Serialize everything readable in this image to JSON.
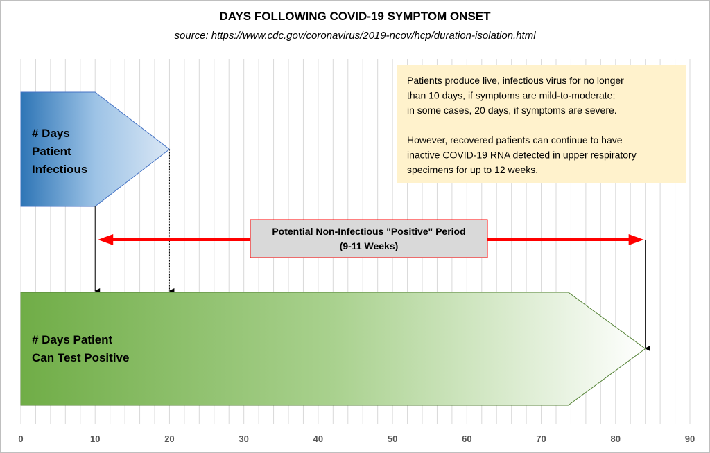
{
  "chart_data": {
    "type": "timeline",
    "title": "DAYS FOLLOWING COVID-19 SYMPTOM ONSET",
    "subtitle": "source: https://www.cdc.gov/coronavirus/2019-ncov/hcp/duration-isolation.html",
    "x_axis": {
      "range": [
        0,
        90
      ],
      "ticks": [
        "0",
        "10",
        "20",
        "30",
        "40",
        "50",
        "60",
        "70",
        "80",
        "90"
      ],
      "grid_step": 2
    },
    "infectious": {
      "label": [
        "# Days",
        "Patient",
        "Infectious"
      ],
      "start": 0,
      "typical_end": 10,
      "max_end": 20,
      "colors": [
        "#2e75b6",
        "#9dc3e6",
        "#dae7f5"
      ]
    },
    "positive": {
      "label": [
        "# Days Patient",
        "Can Test Positive"
      ],
      "start": 0,
      "end": 84,
      "colors": [
        "#70ad47",
        "#a9d18e",
        "#ffffff"
      ]
    },
    "non_infectious_period": {
      "label": [
        "Potential Non-Infectious \"Positive\" Period",
        "(9-11 Weeks)"
      ],
      "start": 10,
      "end": 84,
      "color": "#ff0000"
    },
    "note": {
      "lines": [
        "Patients produce live, infectious virus for no longer",
        "than 10 days, if symptoms are mild-to-moderate;",
        "in some cases, 20 days, if symptoms are severe.",
        "",
        "However, recovered patients can continue to have",
        "inactive COVID-19 RNA detected in upper respiratory",
        "specimens for up to 12 weeks."
      ],
      "background": "#fff2cc"
    }
  }
}
